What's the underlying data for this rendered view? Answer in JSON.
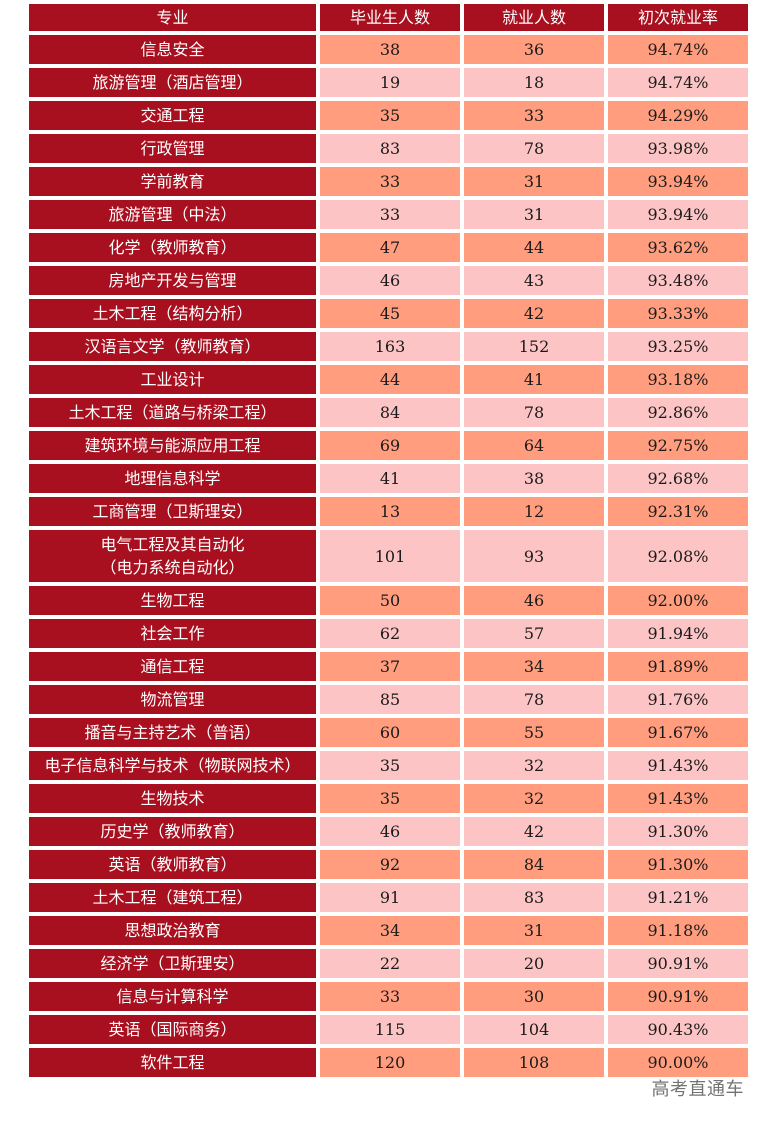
{
  "table": {
    "columns": [
      "专业",
      "毕业生人数",
      "就业人数",
      "初次就业率"
    ],
    "rows": [
      {
        "major": "信息安全",
        "graduates": "38",
        "employed": "36",
        "rate": "94.74%"
      },
      {
        "major": "旅游管理（酒店管理）",
        "graduates": "19",
        "employed": "18",
        "rate": "94.74%"
      },
      {
        "major": "交通工程",
        "graduates": "35",
        "employed": "33",
        "rate": "94.29%"
      },
      {
        "major": "行政管理",
        "graduates": "83",
        "employed": "78",
        "rate": "93.98%"
      },
      {
        "major": "学前教育",
        "graduates": "33",
        "employed": "31",
        "rate": "93.94%"
      },
      {
        "major": "旅游管理（中法）",
        "graduates": "33",
        "employed": "31",
        "rate": "93.94%"
      },
      {
        "major": "化学（教师教育）",
        "graduates": "47",
        "employed": "44",
        "rate": "93.62%"
      },
      {
        "major": "房地产开发与管理",
        "graduates": "46",
        "employed": "43",
        "rate": "93.48%"
      },
      {
        "major": "土木工程（结构分析）",
        "graduates": "45",
        "employed": "42",
        "rate": "93.33%"
      },
      {
        "major": "汉语言文学（教师教育）",
        "graduates": "163",
        "employed": "152",
        "rate": "93.25%"
      },
      {
        "major": "工业设计",
        "graduates": "44",
        "employed": "41",
        "rate": "93.18%"
      },
      {
        "major": "土木工程（道路与桥梁工程）",
        "graduates": "84",
        "employed": "78",
        "rate": "92.86%"
      },
      {
        "major": "建筑环境与能源应用工程",
        "graduates": "69",
        "employed": "64",
        "rate": "92.75%"
      },
      {
        "major": "地理信息科学",
        "graduates": "41",
        "employed": "38",
        "rate": "92.68%"
      },
      {
        "major": "工商管理（卫斯理安）",
        "graduates": "13",
        "employed": "12",
        "rate": "92.31%"
      },
      {
        "major": "电气工程及其自动化\n（电力系统自动化）",
        "graduates": "101",
        "employed": "93",
        "rate": "92.08%"
      },
      {
        "major": "生物工程",
        "graduates": "50",
        "employed": "46",
        "rate": "92.00%"
      },
      {
        "major": "社会工作",
        "graduates": "62",
        "employed": "57",
        "rate": "91.94%"
      },
      {
        "major": "通信工程",
        "graduates": "37",
        "employed": "34",
        "rate": "91.89%"
      },
      {
        "major": "物流管理",
        "graduates": "85",
        "employed": "78",
        "rate": "91.76%"
      },
      {
        "major": "播音与主持艺术（普语）",
        "graduates": "60",
        "employed": "55",
        "rate": "91.67%"
      },
      {
        "major": "电子信息科学与技术（物联网技术）",
        "graduates": "35",
        "employed": "32",
        "rate": "91.43%"
      },
      {
        "major": "生物技术",
        "graduates": "35",
        "employed": "32",
        "rate": "91.43%"
      },
      {
        "major": "历史学（教师教育）",
        "graduates": "46",
        "employed": "42",
        "rate": "91.30%"
      },
      {
        "major": "英语（教师教育）",
        "graduates": "92",
        "employed": "84",
        "rate": "91.30%"
      },
      {
        "major": "土木工程（建筑工程）",
        "graduates": "91",
        "employed": "83",
        "rate": "91.21%"
      },
      {
        "major": "思想政治教育",
        "graduates": "34",
        "employed": "31",
        "rate": "91.18%"
      },
      {
        "major": "经济学（卫斯理安）",
        "graduates": "22",
        "employed": "20",
        "rate": "90.91%"
      },
      {
        "major": "信息与计算科学",
        "graduates": "33",
        "employed": "30",
        "rate": "90.91%"
      },
      {
        "major": "英语（国际商务）",
        "graduates": "115",
        "employed": "104",
        "rate": "90.43%"
      },
      {
        "major": "软件工程",
        "graduates": "120",
        "employed": "108",
        "rate": "90.00%"
      }
    ]
  },
  "watermark": "高考直通车",
  "colors": {
    "header_bg": "#a80f1f",
    "row_odd_bg": "#ff9d7e",
    "row_even_bg": "#fcc4c4"
  }
}
